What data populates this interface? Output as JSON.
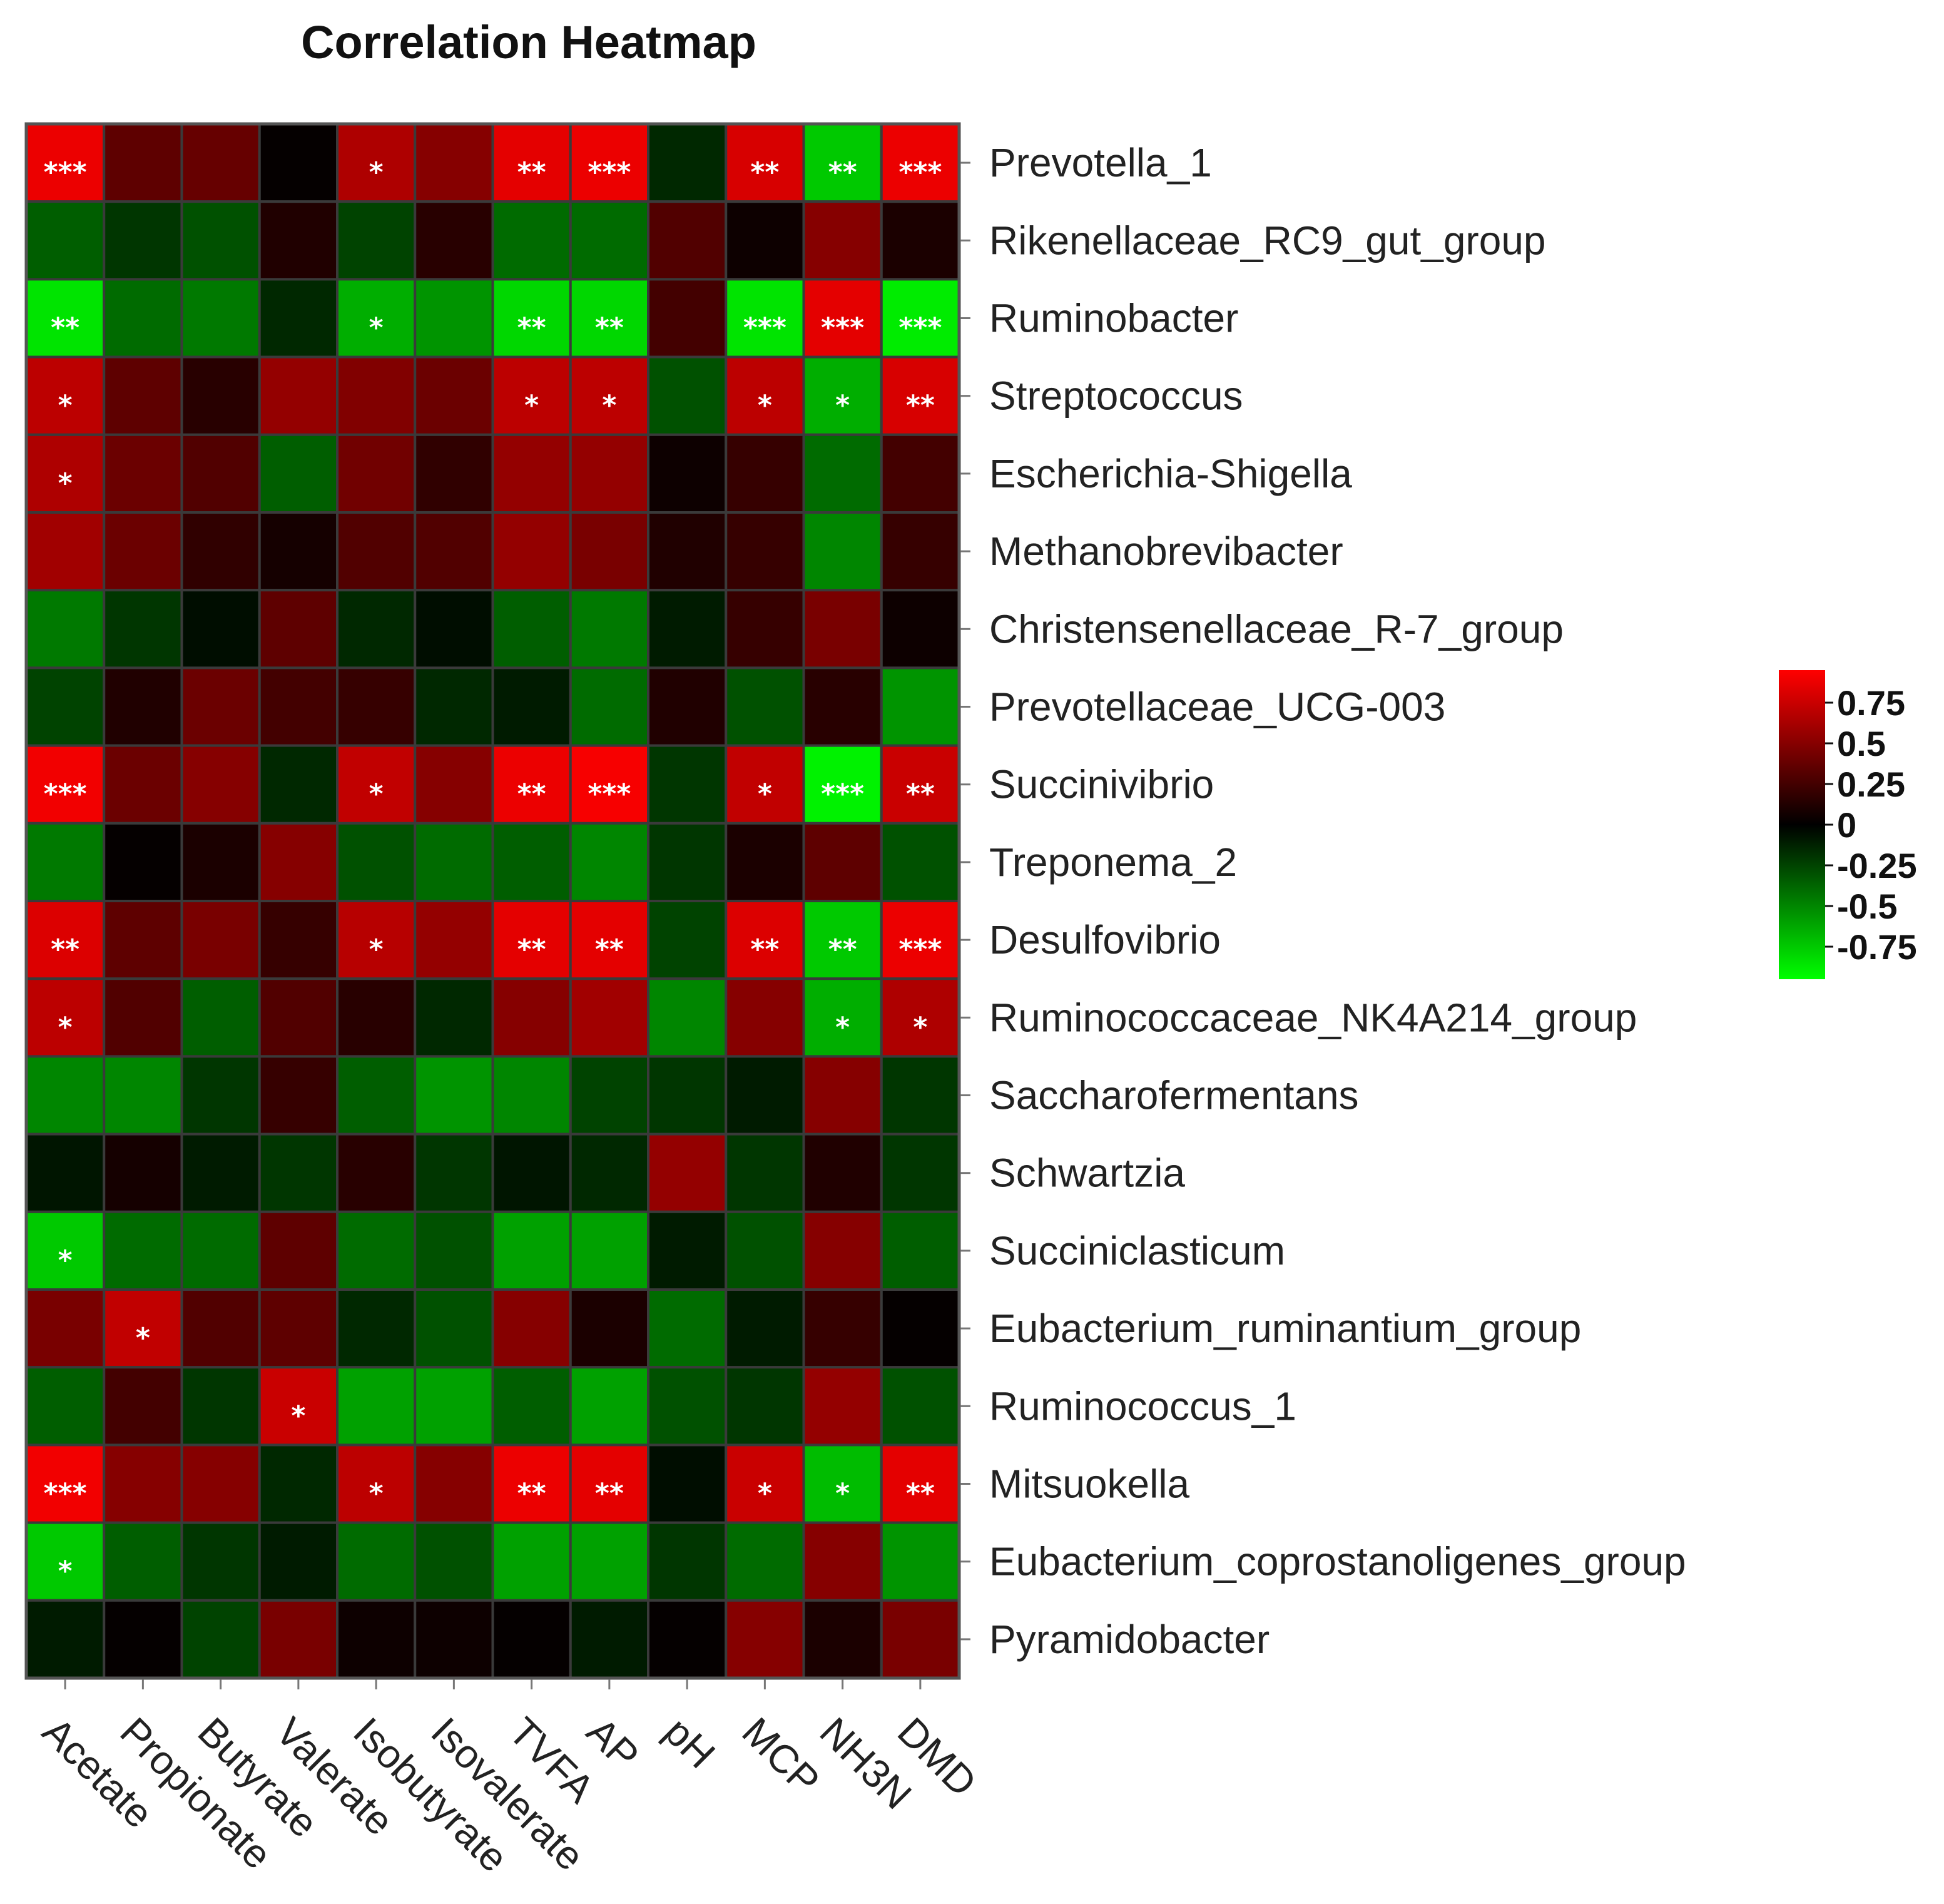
{
  "chart_data": {
    "type": "heatmap",
    "title": "Correlation Heatmap",
    "x": [
      "Acetate",
      "Propionate",
      "Butyrate",
      "Valerate",
      "Isobutyrate",
      "Isovalerate",
      "TVFA",
      "AP",
      "pH",
      "MCP",
      "NH3N",
      "DMD"
    ],
    "y": [
      "Prevotella_1",
      "Rikenellaceae_RC9_gut_group",
      "Ruminobacter",
      "Streptococcus",
      "Escherichia-Shigella",
      "Methanobrevibacter",
      "Christensenellaceae_R-7_group",
      "Prevotellaceae_UCG-003",
      "Succinivibrio",
      "Treponema_2",
      "Desulfovibrio",
      "Ruminococcaceae_NK4A214_group",
      "Saccharofermentans",
      "Schwartzia",
      "Succiniclasticum",
      "Eubacterium_ruminantium_group",
      "Ruminococcus_1",
      "Mitsuokella",
      "Eubacterium_coprostanoligenes_group",
      "Pyramidobacter"
    ],
    "values": [
      [
        0.88,
        0.35,
        0.38,
        0.02,
        0.65,
        0.5,
        0.85,
        0.88,
        -0.15,
        0.8,
        -0.75,
        0.88
      ],
      [
        -0.35,
        -0.2,
        -0.3,
        0.12,
        -0.25,
        0.15,
        -0.4,
        -0.4,
        0.3,
        0.05,
        0.5,
        0.1
      ],
      [
        -0.85,
        -0.4,
        -0.45,
        -0.15,
        -0.65,
        -0.55,
        -0.8,
        -0.8,
        0.25,
        -0.85,
        0.85,
        -0.88
      ],
      [
        0.7,
        0.35,
        0.15,
        0.55,
        0.48,
        0.4,
        0.7,
        0.7,
        -0.3,
        0.7,
        -0.65,
        0.8
      ],
      [
        0.65,
        0.4,
        0.3,
        -0.35,
        0.42,
        0.18,
        0.55,
        0.55,
        0.05,
        0.2,
        -0.4,
        0.25
      ],
      [
        0.6,
        0.4,
        0.18,
        0.08,
        0.3,
        0.3,
        0.55,
        0.45,
        0.12,
        0.2,
        -0.5,
        0.2
      ],
      [
        -0.45,
        -0.2,
        -0.05,
        0.35,
        -0.15,
        -0.05,
        -0.35,
        -0.45,
        -0.1,
        0.2,
        0.45,
        0.05
      ],
      [
        -0.25,
        0.12,
        0.4,
        0.25,
        0.2,
        -0.15,
        -0.1,
        -0.4,
        0.12,
        -0.3,
        0.15,
        -0.55
      ],
      [
        0.9,
        0.4,
        0.5,
        -0.15,
        0.72,
        0.5,
        0.88,
        0.92,
        -0.2,
        0.72,
        -0.9,
        0.75
      ],
      [
        -0.45,
        0.02,
        0.1,
        0.5,
        -0.3,
        -0.4,
        -0.35,
        -0.5,
        -0.2,
        0.1,
        0.35,
        -0.3
      ],
      [
        0.82,
        0.35,
        0.45,
        0.2,
        0.68,
        0.55,
        0.85,
        0.85,
        -0.25,
        0.82,
        -0.75,
        0.88
      ],
      [
        0.7,
        0.3,
        -0.35,
        0.3,
        0.15,
        -0.15,
        0.5,
        0.6,
        -0.5,
        0.5,
        -0.65,
        0.65
      ],
      [
        -0.5,
        -0.5,
        -0.2,
        0.2,
        -0.35,
        -0.55,
        -0.5,
        -0.25,
        -0.2,
        -0.1,
        0.5,
        -0.2
      ],
      [
        -0.08,
        0.08,
        -0.1,
        -0.2,
        0.15,
        -0.2,
        -0.08,
        -0.15,
        0.55,
        -0.2,
        0.12,
        -0.2
      ],
      [
        -0.75,
        -0.4,
        -0.4,
        0.35,
        -0.4,
        -0.3,
        -0.6,
        -0.6,
        -0.1,
        -0.3,
        0.5,
        -0.35
      ],
      [
        0.45,
        0.72,
        0.3,
        0.35,
        -0.15,
        -0.3,
        0.5,
        0.1,
        -0.4,
        -0.1,
        0.2,
        0.02
      ],
      [
        -0.35,
        0.25,
        -0.2,
        0.75,
        -0.6,
        -0.6,
        -0.35,
        -0.6,
        -0.3,
        -0.2,
        0.55,
        -0.3
      ],
      [
        0.9,
        0.5,
        0.5,
        -0.15,
        0.7,
        0.5,
        0.88,
        0.85,
        -0.05,
        0.75,
        -0.7,
        0.85
      ],
      [
        -0.75,
        -0.35,
        -0.2,
        -0.1,
        -0.4,
        -0.3,
        -0.6,
        -0.6,
        -0.2,
        -0.4,
        0.5,
        -0.55
      ],
      [
        -0.1,
        0.02,
        -0.25,
        0.45,
        0.05,
        0.05,
        0.02,
        -0.1,
        0.02,
        0.5,
        0.1,
        0.45
      ]
    ],
    "significance": [
      [
        "***",
        "",
        "",
        "",
        "*",
        "",
        "**",
        "***",
        "",
        "**",
        "**",
        "***"
      ],
      [
        "",
        "",
        "",
        "",
        "",
        "",
        "",
        "",
        "",
        "",
        "",
        ""
      ],
      [
        "**",
        "",
        "",
        "",
        "*",
        "",
        "**",
        "**",
        "",
        "***",
        "***",
        "***"
      ],
      [
        "*",
        "",
        "",
        "",
        "",
        "",
        "*",
        "*",
        "",
        "*",
        "*",
        "**"
      ],
      [
        "*",
        "",
        "",
        "",
        "",
        "",
        "",
        "",
        "",
        "",
        "",
        ""
      ],
      [
        "",
        "",
        "",
        "",
        "",
        "",
        "",
        "",
        "",
        "",
        "",
        ""
      ],
      [
        "",
        "",
        "",
        "",
        "",
        "",
        "",
        "",
        "",
        "",
        "",
        ""
      ],
      [
        "",
        "",
        "",
        "",
        "",
        "",
        "",
        "",
        "",
        "",
        "",
        ""
      ],
      [
        "***",
        "",
        "",
        "",
        "*",
        "",
        "**",
        "***",
        "",
        "*",
        "***",
        "**"
      ],
      [
        "",
        "",
        "",
        "",
        "",
        "",
        "",
        "",
        "",
        "",
        "",
        ""
      ],
      [
        "**",
        "",
        "",
        "",
        "*",
        "",
        "**",
        "**",
        "",
        "**",
        "**",
        "***"
      ],
      [
        "*",
        "",
        "",
        "",
        "",
        "",
        "",
        "",
        "",
        "",
        "*",
        "*"
      ],
      [
        "",
        "",
        "",
        "",
        "",
        "",
        "",
        "",
        "",
        "",
        "",
        ""
      ],
      [
        "",
        "",
        "",
        "",
        "",
        "",
        "",
        "",
        "",
        "",
        "",
        ""
      ],
      [
        "*",
        "",
        "",
        "",
        "",
        "",
        "",
        "",
        "",
        "",
        "",
        ""
      ],
      [
        "",
        "*",
        "",
        "",
        "",
        "",
        "",
        "",
        "",
        "",
        "",
        ""
      ],
      [
        "",
        "",
        "",
        "*",
        "",
        "",
        "",
        "",
        "",
        "",
        "",
        ""
      ],
      [
        "***",
        "",
        "",
        "",
        "*",
        "",
        "**",
        "**",
        "",
        "*",
        "*",
        "**"
      ],
      [
        "*",
        "",
        "",
        "",
        "",
        "",
        "",
        "",
        "",
        "",
        "",
        ""
      ],
      [
        "",
        "",
        "",
        "",
        "",
        "",
        "",
        "",
        "",
        "",
        "",
        ""
      ]
    ],
    "legend": {
      "position": "right",
      "ticks": [
        0.75,
        0.5,
        0.25,
        0,
        -0.25,
        -0.5,
        -0.75
      ],
      "tick_labels": [
        "0.75",
        "0.5",
        "0.25",
        "0",
        "-0.25",
        "-0.5",
        "-0.75"
      ],
      "range": [
        -0.95,
        0.95
      ]
    },
    "colors": {
      "high": "#ff0000",
      "mid": "#000000",
      "low": "#00ff00",
      "grid": "#3a3a3a"
    }
  }
}
